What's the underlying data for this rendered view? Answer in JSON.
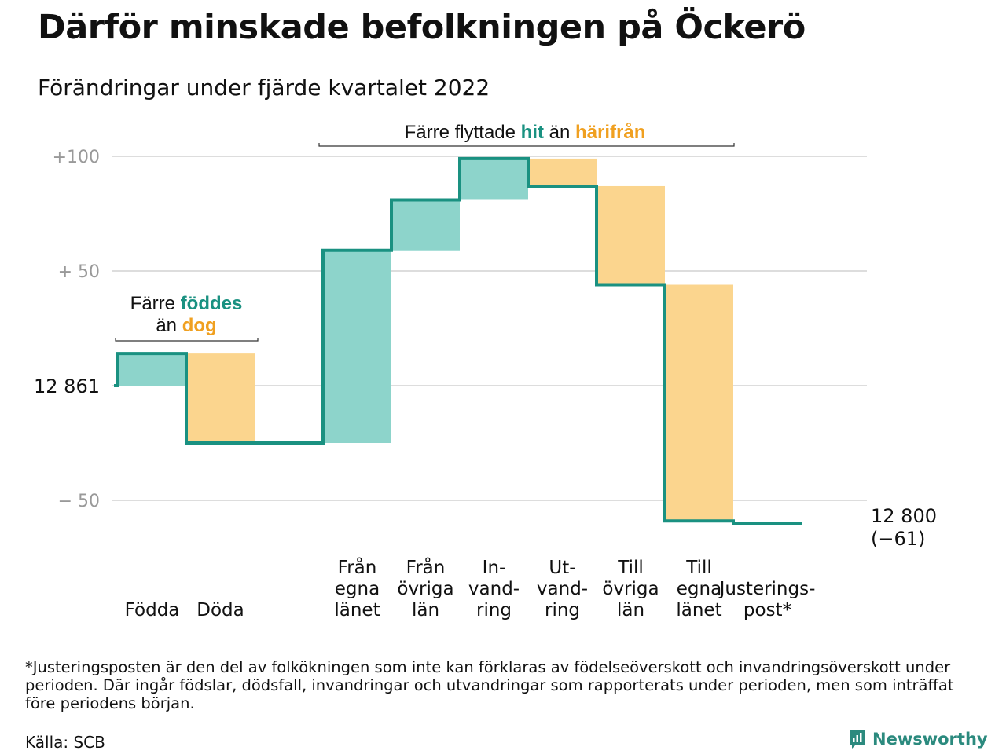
{
  "header": {
    "title": "Därför minskade befolkningen på Öckerö",
    "subtitle": "Förändringar under fjärde kvartalet 2022"
  },
  "colors": {
    "line": "#1a9181",
    "increase": "#8dd4cb",
    "decrease": "#fbd58e",
    "teal_text": "#1a9181",
    "orange_text": "#f0a020",
    "grid": "#dddddd",
    "axis_text": "#999999"
  },
  "chart_data": {
    "type": "waterfall",
    "baseline_label": "12 861",
    "end_label_value": "12 800",
    "end_label_change": "(−61)",
    "ylim": [
      -60,
      102
    ],
    "yticks": [
      {
        "value": 100,
        "label": "+100"
      },
      {
        "value": 50,
        "label": "+ 50"
      },
      {
        "value": 0,
        "label": ""
      },
      {
        "value": -50,
        "label": "− 50"
      }
    ],
    "steps": [
      {
        "label_lines": [
          "Födda"
        ],
        "change": 14,
        "kind": "increase"
      },
      {
        "label_lines": [
          "Döda"
        ],
        "change": -39,
        "kind": "decrease"
      },
      {
        "label_lines": [
          ""
        ],
        "change": 0,
        "kind": "none"
      },
      {
        "label_lines": [
          "Från",
          "egna",
          "länet"
        ],
        "change": 84,
        "kind": "increase"
      },
      {
        "label_lines": [
          "Från",
          "övriga",
          "län"
        ],
        "change": 22,
        "kind": "increase"
      },
      {
        "label_lines": [
          "In-",
          "vand-",
          "ring"
        ],
        "change": 18,
        "kind": "increase"
      },
      {
        "label_lines": [
          "Ut-",
          "vand-",
          "ring"
        ],
        "change": -12,
        "kind": "decrease"
      },
      {
        "label_lines": [
          "Till",
          "övriga",
          "län"
        ],
        "change": -43,
        "kind": "decrease"
      },
      {
        "label_lines": [
          "Till",
          "egna",
          "länet"
        ],
        "change": -103,
        "kind": "decrease"
      },
      {
        "label_lines": [
          "Justerings-",
          "post*"
        ],
        "change": -1,
        "kind": "adjust"
      }
    ],
    "annotations": [
      {
        "parts": [
          {
            "text": "Färre ",
            "style": "plain"
          },
          {
            "text": "föddes",
            "style": "teal"
          }
        ],
        "parts2": [
          {
            "text": "än ",
            "style": "plain"
          },
          {
            "text": "dog",
            "style": "orange"
          }
        ]
      },
      {
        "parts": [
          {
            "text": "Färre flyttade ",
            "style": "plain"
          },
          {
            "text": "hit",
            "style": "teal"
          },
          {
            "text": " än ",
            "style": "plain"
          },
          {
            "text": "härifrån",
            "style": "orange"
          }
        ]
      }
    ]
  },
  "footer": {
    "note": "*Justeringsposten är den del av folkökningen som inte kan förklaras av födelseöverskott och invandringsöverskott under perioden. Där ingår födslar, dödsfall, invandringar och utvandringar som rapporterats under perioden, men som inträffat före periodens början.",
    "source": "Källa: SCB",
    "brand": "Newsworthy"
  }
}
